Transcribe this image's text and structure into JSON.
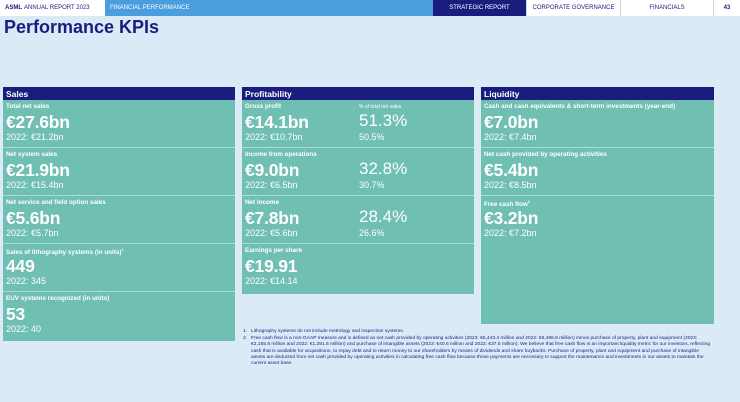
{
  "header": {
    "brand": "ASML",
    "report": "ANNUAL REPORT 2023",
    "section": "FINANCIAL PERFORMANCE",
    "tabs": [
      "STRATEGIC REPORT",
      "CORPORATE GOVERNANCE",
      "FINANCIALS"
    ],
    "page": "43"
  },
  "title": "Performance KPIs",
  "sales": {
    "heading": "Sales",
    "items": [
      {
        "label": "Total net sales",
        "value": "€27.6bn",
        "prior": "2022: €21.2bn"
      },
      {
        "label": "Net system sales",
        "value": "€21.9bn",
        "prior": "2022: €15.4bn"
      },
      {
        "label": "Net service and field option sales",
        "value": "€5.6bn",
        "prior": "2022: €5.7bn"
      },
      {
        "label": "Sales of lithography systems (in units)",
        "sup": "1",
        "value": "449",
        "prior": "2022: 345"
      },
      {
        "label": "EUV systems recognized (in units)",
        "value": "53",
        "prior": "2022: 40"
      }
    ]
  },
  "profitability": {
    "heading": "Profitability",
    "pct_label": "% of total net sales",
    "items": [
      {
        "label": "Gross profit",
        "value": "€14.1bn",
        "prior": "2022: €10.7bn",
        "pct": "51.3%",
        "pct_prior": "50.5%"
      },
      {
        "label": "Income from operations",
        "value": "€9.0bn",
        "prior": "2022: €6.5bn",
        "pct": "32.8%",
        "pct_prior": "30.7%"
      },
      {
        "label": "Net income",
        "value": "€7.8bn",
        "prior": "2022: €5.6bn",
        "pct": "28.4%",
        "pct_prior": "26.6%"
      },
      {
        "label": "Earnings per share",
        "value": "€19.91",
        "prior": "2022: €14.14"
      }
    ]
  },
  "liquidity": {
    "heading": "Liquidity",
    "items": [
      {
        "label": "Cash and cash equivalents & short-term investments (year-end)",
        "value": "€7.0bn",
        "prior": "2022: €7.4bn"
      },
      {
        "label": "Net cash provided by operating activities",
        "value": "€5.4bn",
        "prior": "2022: €8.5bn"
      },
      {
        "label": "Free cash flow",
        "sup": "2",
        "value": "€3.2bn",
        "prior": "2022: €7.2bn"
      }
    ]
  },
  "footnotes": [
    {
      "num": "1.",
      "text": "Lithography systems do not include metrology and inspection systems."
    },
    {
      "num": "2.",
      "text": "Free cash flow is a non-GAAP measure and is defined as net cash provided by operating activities (2023: €5,443.4 million and 2022: €8,486.8 million) minus purchase of property, plant and equipment (2023: €2,155.6 million and 2022: €1,281.6 million) and purchase of intangible assets (2023: €40.6 million and 2022: €37.5 million). We believe that free cash flow is an important liquidity metric for our investors, reflecting cash that is available for acquisitions, to repay debt and to return money to our shareholders by means of dividends and share buybacks. Purchase of property, plant and equipment and purchase of intangible assets are deducted from net cash provided by operating activities in calculating free cash flow because these payments are necessary to support the maintenance and investments in our assets to maintain the current asset base."
    }
  ]
}
